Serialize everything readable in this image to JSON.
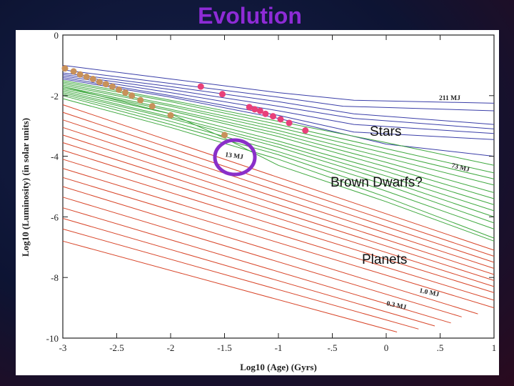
{
  "slide": {
    "title": "Evolution"
  },
  "colors": {
    "title": "#8e2bd6",
    "star_tracks": "#3a3ea8",
    "brown_dwarf_tracks": "#3fa83f",
    "planet_tracks": "#d8462a",
    "pink_points": "#e8407a",
    "tan_points": "#c8915a",
    "highlight_circle": "#8a2fc9"
  },
  "chart_data": {
    "type": "line",
    "xlabel": "Log10 (Age) (Gyrs)",
    "ylabel": "Log10 (Luminosity) (in solar units)",
    "xlim": [
      -3,
      1
    ],
    "ylim": [
      -10,
      0
    ],
    "x_ticks": [
      "-3",
      "-2.5",
      "-2",
      "-1.5",
      "-1",
      "-.5",
      "0",
      ".5",
      "1"
    ],
    "y_ticks": [
      "0",
      "-2",
      "-4",
      "-6",
      "-8",
      "-10"
    ],
    "mass_labels": [
      "211 MJ",
      "73 MJ",
      "13 MJ",
      "1.0 MJ",
      "0.3 MJ"
    ],
    "region_labels": [
      "Stars",
      "Brown Dwarfs?",
      "Planets"
    ],
    "series": [
      {
        "group": "stars",
        "x": [
          -3,
          -2.0,
          -1.0,
          -0.3,
          1.0
        ],
        "y": [
          -1.0,
          -1.45,
          -1.9,
          -2.15,
          -2.25
        ]
      },
      {
        "group": "stars",
        "x": [
          -3,
          -2.0,
          -1.0,
          -0.4,
          1.0
        ],
        "y": [
          -1.15,
          -1.6,
          -2.05,
          -2.35,
          -2.5
        ]
      },
      {
        "group": "stars",
        "x": [
          -3,
          -2.0,
          -1.0,
          -0.3,
          1.0
        ],
        "y": [
          -1.25,
          -1.7,
          -2.2,
          -2.6,
          -2.95
        ]
      },
      {
        "group": "stars",
        "x": [
          -3,
          -2.0,
          -1.0,
          -0.3,
          1.0
        ],
        "y": [
          -1.3,
          -1.8,
          -2.35,
          -2.75,
          -3.1
        ]
      },
      {
        "group": "stars",
        "x": [
          -3,
          -2.0,
          -1.0,
          -0.3,
          1.0
        ],
        "y": [
          -1.35,
          -1.9,
          -2.5,
          -2.95,
          -3.25
        ]
      },
      {
        "group": "stars",
        "x": [
          -3,
          -2.0,
          -1.0,
          -0.3,
          1.0
        ],
        "y": [
          -1.4,
          -2.0,
          -2.65,
          -3.2,
          -3.45
        ]
      },
      {
        "group": "stars",
        "x": [
          -3,
          -2.0,
          -1.0,
          0.0,
          1.0
        ],
        "y": [
          -1.45,
          -2.05,
          -2.75,
          -3.6,
          -4.0
        ]
      },
      {
        "group": "brown_dwarfs",
        "x": [
          -3,
          -2.0,
          -1.0,
          0.0,
          1.0
        ],
        "y": [
          -1.5,
          -2.15,
          -2.85,
          -3.55,
          -4.3
        ]
      },
      {
        "group": "brown_dwarfs",
        "x": [
          -3,
          -2.0,
          -1.0,
          0.0,
          1.0
        ],
        "y": [
          -1.55,
          -2.2,
          -2.95,
          -3.75,
          -4.55
        ]
      },
      {
        "group": "brown_dwarfs",
        "x": [
          -3,
          -2.0,
          -1.0,
          0.0,
          1.0
        ],
        "y": [
          -1.6,
          -2.3,
          -3.05,
          -3.9,
          -4.75
        ]
      },
      {
        "group": "brown_dwarfs",
        "x": [
          -3,
          -2.0,
          -1.0,
          0.0,
          1.0
        ],
        "y": [
          -1.65,
          -2.35,
          -3.15,
          -4.05,
          -4.95
        ]
      },
      {
        "group": "brown_dwarfs",
        "x": [
          -3,
          -2.0,
          -1.0,
          0.0,
          1.0
        ],
        "y": [
          -1.7,
          -2.45,
          -3.25,
          -4.2,
          -5.2
        ]
      },
      {
        "group": "brown_dwarfs",
        "x": [
          -3,
          -2.0,
          -1.0,
          0.0,
          1.0
        ],
        "y": [
          -1.75,
          -2.5,
          -3.35,
          -4.35,
          -5.4
        ]
      },
      {
        "group": "brown_dwarfs",
        "x": [
          -3,
          -2.0,
          -1.0,
          0.0,
          1.0
        ],
        "y": [
          -1.8,
          -2.6,
          -3.5,
          -4.5,
          -5.6
        ]
      },
      {
        "group": "brown_dwarfs",
        "x": [
          -3,
          -2.0,
          -1.0,
          0.0,
          1.0
        ],
        "y": [
          -1.85,
          -2.7,
          -3.6,
          -4.65,
          -5.8
        ]
      },
      {
        "group": "brown_dwarfs",
        "x": [
          -3,
          -2.0,
          -1.0,
          0.0,
          1.0
        ],
        "y": [
          -1.9,
          -2.75,
          -3.7,
          -4.8,
          -6.0
        ]
      },
      {
        "group": "brown_dwarfs",
        "x": [
          -3,
          -2.0,
          -1.0,
          0.0,
          1.0
        ],
        "y": [
          -1.95,
          -2.85,
          -3.85,
          -4.95,
          -6.2
        ]
      },
      {
        "group": "brown_dwarfs",
        "x": [
          -3,
          -2.0,
          -1.0,
          0.0,
          1.0
        ],
        "y": [
          -2.0,
          -2.95,
          -3.95,
          -5.15,
          -6.4
        ]
      },
      {
        "group": "brown_dwarfs",
        "x": [
          -3,
          -2.0,
          -1.0,
          0.0,
          1.0
        ],
        "y": [
          -2.1,
          -3.05,
          -4.1,
          -5.35,
          -6.7
        ]
      },
      {
        "group": "brown_dwarfs",
        "x": [
          -3,
          -2.0,
          -1.5,
          -1.0,
          0.0,
          1.0
        ],
        "y": [
          -1.7,
          -2.6,
          -3.4,
          -4.3,
          -5.5,
          -6.8
        ]
      },
      {
        "group": "planets",
        "x": [
          -3,
          1.0
        ],
        "y": [
          -2.3,
          -7.1
        ]
      },
      {
        "group": "planets",
        "x": [
          -3,
          1.0
        ],
        "y": [
          -2.55,
          -7.3
        ]
      },
      {
        "group": "planets",
        "x": [
          -3,
          1.0
        ],
        "y": [
          -2.8,
          -7.5
        ]
      },
      {
        "group": "planets",
        "x": [
          -3,
          1.0
        ],
        "y": [
          -3.05,
          -7.7
        ]
      },
      {
        "group": "planets",
        "x": [
          -3,
          1.0
        ],
        "y": [
          -3.3,
          -7.9
        ]
      },
      {
        "group": "planets",
        "x": [
          -3,
          1.0
        ],
        "y": [
          -3.55,
          -8.1
        ]
      },
      {
        "group": "planets",
        "x": [
          -3,
          1.0
        ],
        "y": [
          -3.8,
          -8.3
        ]
      },
      {
        "group": "planets",
        "x": [
          -3,
          1.0
        ],
        "y": [
          -4.1,
          -8.5
        ]
      },
      {
        "group": "planets",
        "x": [
          -3,
          1.0
        ],
        "y": [
          -4.4,
          -8.75
        ]
      },
      {
        "group": "planets",
        "x": [
          -3,
          1.0
        ],
        "y": [
          -4.7,
          -9.0
        ]
      },
      {
        "group": "planets",
        "x": [
          -3,
          0.85
        ],
        "y": [
          -5.0,
          -9.2
        ]
      },
      {
        "group": "planets",
        "x": [
          -3,
          0.7
        ],
        "y": [
          -5.35,
          -9.3
        ]
      },
      {
        "group": "planets",
        "x": [
          -3,
          0.6
        ],
        "y": [
          -5.7,
          -9.5
        ]
      },
      {
        "group": "planets",
        "x": [
          -3,
          0.45
        ],
        "y": [
          -6.05,
          -9.6
        ]
      },
      {
        "group": "planets",
        "x": [
          -3,
          0.3
        ],
        "y": [
          -6.4,
          -9.7
        ]
      },
      {
        "group": "planets",
        "x": [
          -3,
          0.1
        ],
        "y": [
          -6.8,
          -9.8
        ]
      }
    ],
    "pink_points": [
      [
        -1.72,
        -1.7
      ],
      [
        -1.52,
        -1.95
      ],
      [
        -1.27,
        -2.38
      ],
      [
        -1.22,
        -2.45
      ],
      [
        -1.17,
        -2.5
      ],
      [
        -1.12,
        -2.6
      ],
      [
        -1.05,
        -2.68
      ],
      [
        -0.98,
        -2.78
      ],
      [
        -0.9,
        -2.9
      ],
      [
        -0.75,
        -3.15
      ]
    ],
    "tan_points": [
      [
        -2.98,
        -1.1
      ],
      [
        -2.9,
        -1.2
      ],
      [
        -2.84,
        -1.3
      ],
      [
        -2.78,
        -1.38
      ],
      [
        -2.72,
        -1.45
      ],
      [
        -2.66,
        -1.55
      ],
      [
        -2.6,
        -1.62
      ],
      [
        -2.54,
        -1.7
      ],
      [
        -2.48,
        -1.8
      ],
      [
        -2.42,
        -1.9
      ],
      [
        -2.36,
        -2.0
      ],
      [
        -2.28,
        -2.15
      ],
      [
        -2.17,
        -2.35
      ],
      [
        -2.0,
        -2.65
      ],
      [
        -1.5,
        -3.3
      ]
    ]
  }
}
